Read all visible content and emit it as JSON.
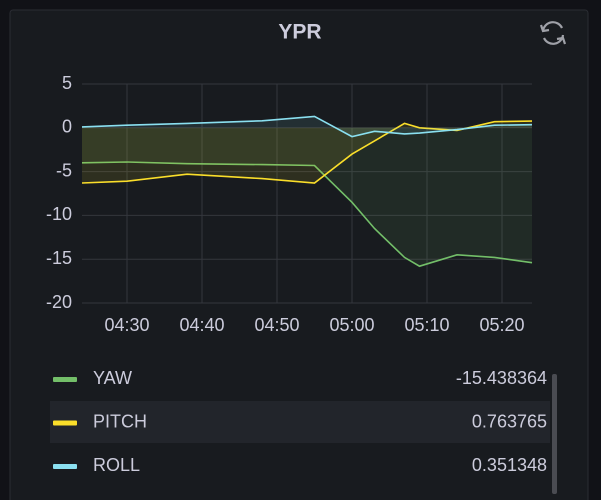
{
  "chart_data": {
    "type": "line",
    "title": "YPR",
    "x": [
      "04:24",
      "04:30",
      "04:38",
      "04:48",
      "04:55",
      "05:00",
      "05:03",
      "05:07",
      "05:09",
      "05:14",
      "05:19",
      "05:24"
    ],
    "xlim": [
      "04:24",
      "05:24"
    ],
    "xticks": [
      "04:30",
      "04:40",
      "04:50",
      "05:00",
      "05:10",
      "05:20"
    ],
    "ylim": [
      -20,
      5
    ],
    "yticks": [
      5,
      0,
      -5,
      -10,
      -15,
      -20
    ],
    "grid": true,
    "legend": "bottom",
    "series": [
      {
        "name": "YAW",
        "color": "#73bf69",
        "last": -15.438364,
        "values": [
          -4,
          -3.9,
          -4.1,
          -4.2,
          -4.3,
          -8.5,
          -11.5,
          -14.8,
          -15.8,
          -14.5,
          -14.8,
          -15.4
        ]
      },
      {
        "name": "PITCH",
        "color": "#fade2a",
        "last": 0.763765,
        "values": [
          -6.3,
          -6.1,
          -5.3,
          -5.8,
          -6.3,
          -3,
          -1.5,
          0.5,
          0,
          -0.3,
          0.7,
          0.76
        ]
      },
      {
        "name": "ROLL",
        "color": "#8ae0f0",
        "last": 0.351348,
        "values": [
          0.1,
          0.3,
          0.5,
          0.8,
          1.3,
          -1,
          -0.4,
          -0.7,
          -0.6,
          -0.2,
          0.3,
          0.35
        ]
      }
    ]
  }
}
